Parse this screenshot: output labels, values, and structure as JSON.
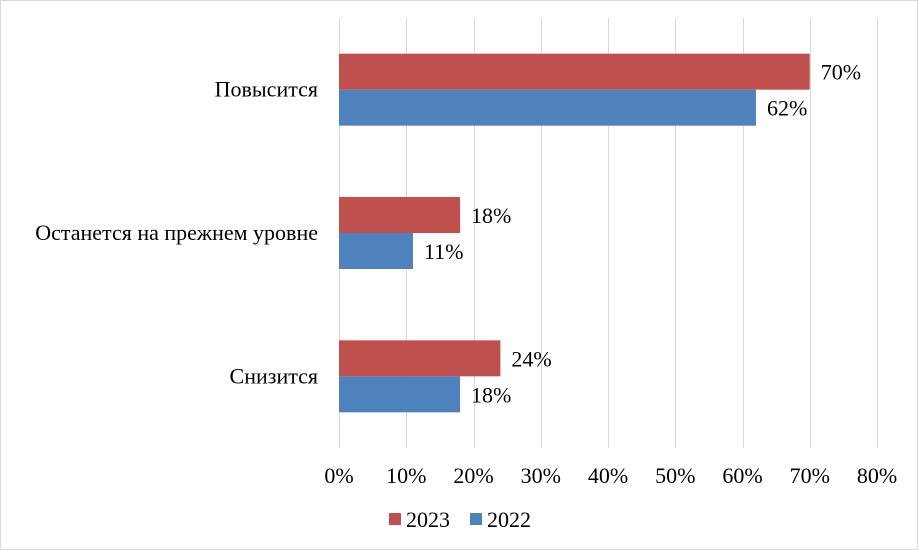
{
  "chart_data": {
    "type": "bar",
    "orientation": "horizontal",
    "categories": [
      "Повысится",
      "Останется на прежнем уровне",
      "Снизится"
    ],
    "series": [
      {
        "name": "2023",
        "values": [
          70,
          18,
          24
        ],
        "labels": [
          "70%",
          "18%",
          "24%"
        ],
        "color": "#c0504d"
      },
      {
        "name": "2022",
        "values": [
          62,
          11,
          18
        ],
        "labels": [
          "62%",
          "11%",
          "18%"
        ],
        "color": "#4f81bd"
      }
    ],
    "xlim": [
      0,
      80
    ],
    "ticks": [
      0,
      10,
      20,
      30,
      40,
      50,
      60,
      70,
      80
    ],
    "tick_labels": [
      "0%",
      "10%",
      "20%",
      "30%",
      "40%",
      "50%",
      "60%",
      "70%",
      "80%"
    ],
    "grid": true,
    "legend": "bottom",
    "title": "",
    "xlabel": "",
    "ylabel": ""
  }
}
